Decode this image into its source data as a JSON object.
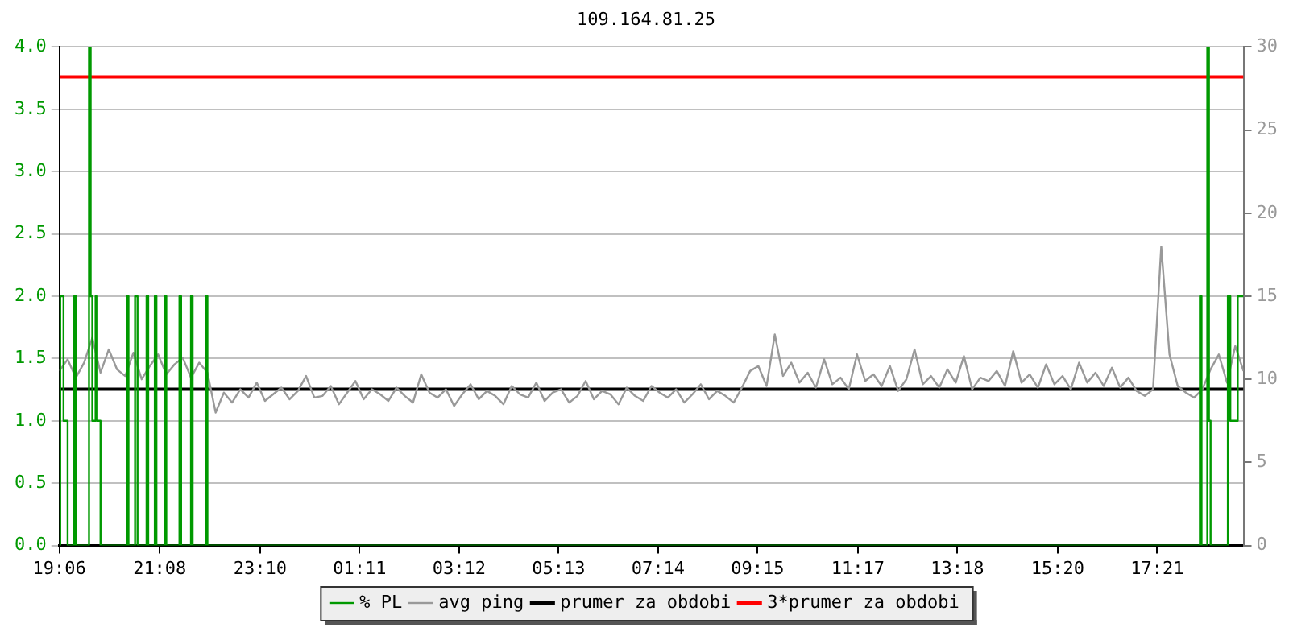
{
  "chart_data": {
    "type": "line",
    "title": "109.164.81.25",
    "xlim": [
      "--01-01T19:06",
      "--01-02T19:06"
    ],
    "xticks": [
      {
        "value": "--01-01T19:06",
        "label": "19:06"
      },
      {
        "value": "--01-01T21:08",
        "label": "21:08"
      },
      {
        "value": "--01-01T23:10",
        "label": "23:10"
      },
      {
        "value": "--01-02T01:11",
        "label": "01:11"
      },
      {
        "value": "--01-02T03:12",
        "label": "03:12"
      },
      {
        "value": "--01-02T05:13",
        "label": "05:13"
      },
      {
        "value": "--01-02T07:14",
        "label": "07:14"
      },
      {
        "value": "--01-02T09:15",
        "label": "09:15"
      },
      {
        "value": "--01-02T11:17",
        "label": "11:17"
      },
      {
        "value": "--01-02T13:18",
        "label": "13:18"
      },
      {
        "value": "--01-02T15:20",
        "label": "15:20"
      },
      {
        "value": "--01-02T17:21",
        "label": "17:21"
      }
    ],
    "ylim": [
      0,
      4
    ],
    "yticks": [
      {
        "value": 0,
        "label": "0.0"
      },
      {
        "value": 0.5,
        "label": "0.5"
      },
      {
        "value": 1,
        "label": "1.0"
      },
      {
        "value": 1.5,
        "label": "1.5"
      },
      {
        "value": 2,
        "label": "2.0"
      },
      {
        "value": 2.5,
        "label": "2.5"
      },
      {
        "value": 3,
        "label": "3.0"
      },
      {
        "value": 3.5,
        "label": "3.5"
      },
      {
        "value": 4,
        "label": "4.0"
      }
    ],
    "y2lim": [
      0,
      30
    ],
    "y2ticks": [
      0,
      5,
      10,
      15,
      20,
      25,
      30
    ],
    "grid": "y",
    "legend": "bottom",
    "marker": "none",
    "series": [
      {
        "name": "% PL",
        "type": "step",
        "axis": "y",
        "color": "#009900",
        "x": [
          "--01-01T19:06",
          "--01-01T19:07",
          "--01-01T19:11",
          "--01-01T19:16",
          "--01-01T19:24",
          "--01-01T19:26",
          "--01-01T19:42",
          "--01-01T19:44",
          "--01-01T19:46",
          "--01-01T19:50",
          "--01-01T19:52",
          "--01-01T19:56",
          "--01-01T20:28",
          "--01-01T20:30",
          "--01-01T20:38",
          "--01-01T20:41",
          "--01-01T20:52",
          "--01-01T20:54",
          "--01-01T21:02",
          "--01-01T21:04",
          "--01-01T21:14",
          "--01-01T21:16",
          "--01-01T21:32",
          "--01-01T21:34",
          "--01-01T21:46",
          "--01-01T21:48",
          "--01-01T22:04",
          "--01-01T22:06",
          "--01-02T18:13",
          "--01-02T18:15",
          "--01-02T18:22",
          "--01-02T18:24",
          "--01-02T18:26",
          "--01-02T18:47",
          "--01-02T18:50",
          "--01-02T18:59",
          "--01-02T19:06"
        ],
        "values": [
          0,
          2,
          1,
          0,
          2,
          0,
          4,
          2,
          1,
          2,
          1,
          0,
          2,
          0,
          2,
          0,
          2,
          0,
          2,
          0,
          2,
          0,
          2,
          0,
          2,
          0,
          2,
          0,
          2,
          0,
          4,
          1,
          0,
          2,
          1,
          2,
          2
        ]
      },
      {
        "name": "avg ping",
        "type": "line",
        "axis": "y2",
        "color": "#999999",
        "x": [
          "--01-01T19:06",
          "--01-01T19:16",
          "--01-01T19:26",
          "--01-01T19:36",
          "--01-01T19:46",
          "--01-01T19:56",
          "--01-01T20:06",
          "--01-01T20:16",
          "--01-01T20:26",
          "--01-01T20:36",
          "--01-01T20:46",
          "--01-01T20:56",
          "--01-01T21:06",
          "--01-01T21:16",
          "--01-01T21:26",
          "--01-01T21:36",
          "--01-01T21:46",
          "--01-01T21:56",
          "--01-01T22:06",
          "--01-01T22:16",
          "--01-01T22:26",
          "--01-01T22:36",
          "--01-01T22:46",
          "--01-01T22:56",
          "--01-01T23:06",
          "--01-01T23:16",
          "--01-01T23:26",
          "--01-01T23:36",
          "--01-01T23:46",
          "--01-01T23:56",
          "--01-02T00:06",
          "--01-02T00:16",
          "--01-02T00:26",
          "--01-02T00:36",
          "--01-02T00:46",
          "--01-02T00:56",
          "--01-02T01:06",
          "--01-02T01:16",
          "--01-02T01:26",
          "--01-02T01:36",
          "--01-02T01:46",
          "--01-02T01:56",
          "--01-02T02:06",
          "--01-02T02:16",
          "--01-02T02:26",
          "--01-02T02:36",
          "--01-02T02:46",
          "--01-02T02:56",
          "--01-02T03:06",
          "--01-02T03:16",
          "--01-02T03:26",
          "--01-02T03:36",
          "--01-02T03:46",
          "--01-02T03:56",
          "--01-02T04:06",
          "--01-02T04:16",
          "--01-02T04:26",
          "--01-02T04:36",
          "--01-02T04:46",
          "--01-02T04:56",
          "--01-02T05:06",
          "--01-02T05:16",
          "--01-02T05:26",
          "--01-02T05:36",
          "--01-02T05:46",
          "--01-02T05:56",
          "--01-02T06:06",
          "--01-02T06:16",
          "--01-02T06:26",
          "--01-02T06:36",
          "--01-02T06:46",
          "--01-02T06:56",
          "--01-02T07:06",
          "--01-02T07:16",
          "--01-02T07:26",
          "--01-02T07:36",
          "--01-02T07:46",
          "--01-02T07:56",
          "--01-02T08:06",
          "--01-02T08:16",
          "--01-02T08:26",
          "--01-02T08:36",
          "--01-02T08:46",
          "--01-02T08:56",
          "--01-02T09:06",
          "--01-02T09:16",
          "--01-02T09:26",
          "--01-02T09:36",
          "--01-02T09:46",
          "--01-02T09:56",
          "--01-02T10:06",
          "--01-02T10:16",
          "--01-02T10:26",
          "--01-02T10:36",
          "--01-02T10:46",
          "--01-02T10:56",
          "--01-02T11:06",
          "--01-02T11:16",
          "--01-02T11:26",
          "--01-02T11:36",
          "--01-02T11:46",
          "--01-02T11:56",
          "--01-02T12:06",
          "--01-02T12:16",
          "--01-02T12:26",
          "--01-02T12:36",
          "--01-02T12:46",
          "--01-02T12:56",
          "--01-02T13:06",
          "--01-02T13:16",
          "--01-02T13:26",
          "--01-02T13:36",
          "--01-02T13:46",
          "--01-02T13:56",
          "--01-02T14:06",
          "--01-02T14:16",
          "--01-02T14:26",
          "--01-02T14:36",
          "--01-02T14:46",
          "--01-02T14:56",
          "--01-02T15:06",
          "--01-02T15:16",
          "--01-02T15:26",
          "--01-02T15:36",
          "--01-02T15:46",
          "--01-02T15:56",
          "--01-02T16:06",
          "--01-02T16:16",
          "--01-02T16:26",
          "--01-02T16:36",
          "--01-02T16:46",
          "--01-02T16:56",
          "--01-02T17:06",
          "--01-02T17:16",
          "--01-02T17:26",
          "--01-02T17:36",
          "--01-02T17:46",
          "--01-02T17:56",
          "--01-02T18:06",
          "--01-02T18:16",
          "--01-02T18:26",
          "--01-02T18:36",
          "--01-02T18:46",
          "--01-02T18:56",
          "--01-02T19:06"
        ],
        "values": [
          10.5,
          11.2,
          10.1,
          11.0,
          12.5,
          10.4,
          11.8,
          10.6,
          10.2,
          11.6,
          10.0,
          10.8,
          11.5,
          10.3,
          10.9,
          11.3,
          10.1,
          11.0,
          10.4,
          8.0,
          9.2,
          8.6,
          9.4,
          8.9,
          9.8,
          8.7,
          9.1,
          9.5,
          8.8,
          9.3,
          10.2,
          8.9,
          9.0,
          9.6,
          8.5,
          9.2,
          9.9,
          8.8,
          9.4,
          9.1,
          8.7,
          9.5,
          9.0,
          8.6,
          10.3,
          9.2,
          8.9,
          9.4,
          8.4,
          9.1,
          9.7,
          8.8,
          9.3,
          9.0,
          8.5,
          9.6,
          9.1,
          8.9,
          9.8,
          8.7,
          9.2,
          9.4,
          8.6,
          9.0,
          9.9,
          8.8,
          9.3,
          9.1,
          8.5,
          9.5,
          9.0,
          8.7,
          9.6,
          9.2,
          8.9,
          9.4,
          8.6,
          9.1,
          9.7,
          8.8,
          9.3,
          9.0,
          8.6,
          9.5,
          10.5,
          10.8,
          9.6,
          12.7,
          10.2,
          11.0,
          9.8,
          10.4,
          9.5,
          11.2,
          9.7,
          10.1,
          9.4,
          11.5,
          9.9,
          10.3,
          9.6,
          10.8,
          9.3,
          10.0,
          11.8,
          9.7,
          10.2,
          9.5,
          10.6,
          9.8,
          11.4,
          9.4,
          10.1,
          9.9,
          10.5,
          9.6,
          11.7,
          9.8,
          10.3,
          9.5,
          10.9,
          9.7,
          10.2,
          9.4,
          11.0,
          9.8,
          10.4,
          9.6,
          10.7,
          9.5,
          10.1,
          9.3,
          9.0,
          9.4,
          18,
          11.5,
          9.6,
          9.2,
          8.9,
          9.4,
          10.6,
          11.5,
          9.8,
          12.0,
          10.5
        ]
      }
    ],
    "ref_lines": [
      {
        "axis": "y2",
        "value": 9.4,
        "label": "prumer za obdobi",
        "color": "#000000"
      },
      {
        "axis": "y2",
        "value": 28.2,
        "label": "3*prumer za obdobi",
        "color": "#ff0000"
      }
    ]
  }
}
